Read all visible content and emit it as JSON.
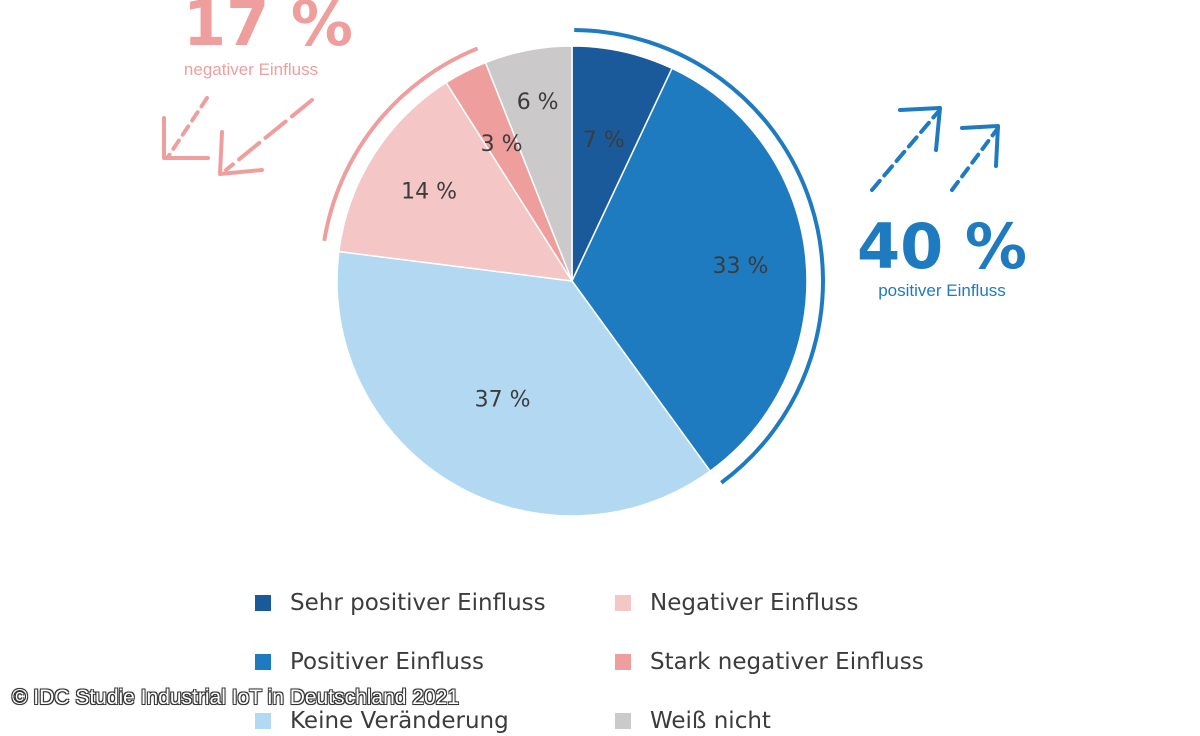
{
  "chart_data": {
    "type": "pie",
    "title": "",
    "slices": [
      {
        "name": "Sehr positiver Einfluss",
        "value": 7,
        "label": "7 %",
        "color": "#1a5a9a"
      },
      {
        "name": "Positiver Einfluss",
        "value": 33,
        "label": "33 %",
        "color": "#1f7bbf"
      },
      {
        "name": "Keine Veränderung",
        "value": 37,
        "label": "37 %",
        "color": "#b3d9f2"
      },
      {
        "name": "Negativer Einfluss",
        "value": 14,
        "label": "14 %",
        "color": "#f4c6c6"
      },
      {
        "name": "Stark negativer Einfluss",
        "value": 3,
        "label": "3 %",
        "color": "#ef9e9e"
      },
      {
        "name": "Weiß nicht",
        "value": 6,
        "label": "6 %",
        "color": "#cbc9ca"
      }
    ],
    "callouts": {
      "positive": {
        "value": "40 %",
        "text": "positiver Einfluss",
        "color": "#1f7bbf"
      },
      "negative": {
        "value": "17 %",
        "text": "negativer Einfluss",
        "color": "#ef9e9e"
      }
    },
    "legend_placement": "bottom"
  },
  "legend": [
    {
      "label": "Sehr positiver Einfluss",
      "color": "#1a5a9a"
    },
    {
      "label": "Negativer Einfluss",
      "color": "#f4c6c6"
    },
    {
      "label": "Positiver Einfluss",
      "color": "#1f7bbf"
    },
    {
      "label": "Stark negativer Einfluss",
      "color": "#ef9e9e"
    },
    {
      "label": "Keine Veränderung",
      "color": "#b3d9f2"
    },
    {
      "label": "Weiß nicht",
      "color": "#cbc9ca"
    }
  ],
  "credit": "© IDC Studie Industrial IoT in Deutschland 2021"
}
